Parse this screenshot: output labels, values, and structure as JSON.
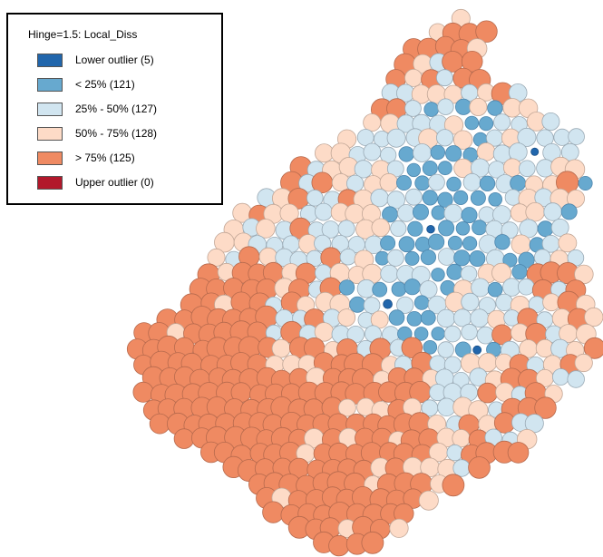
{
  "map": {
    "title": "Hinge=1.5: Local_Diss",
    "classes": [
      {
        "label": "Lower outlier (5)",
        "color": "#2166ac"
      },
      {
        "label": "< 25% (121)",
        "color": "#67a9cf"
      },
      {
        "label": "25% - 50% (127)",
        "color": "#d1e5f0"
      },
      {
        "label": "50% - 75% (128)",
        "color": "#fddbc7"
      },
      {
        "label": "> 75% (125)",
        "color": "#ef8a62"
      },
      {
        "label": "Upper outlier (0)",
        "color": "#b2182b"
      }
    ]
  }
}
